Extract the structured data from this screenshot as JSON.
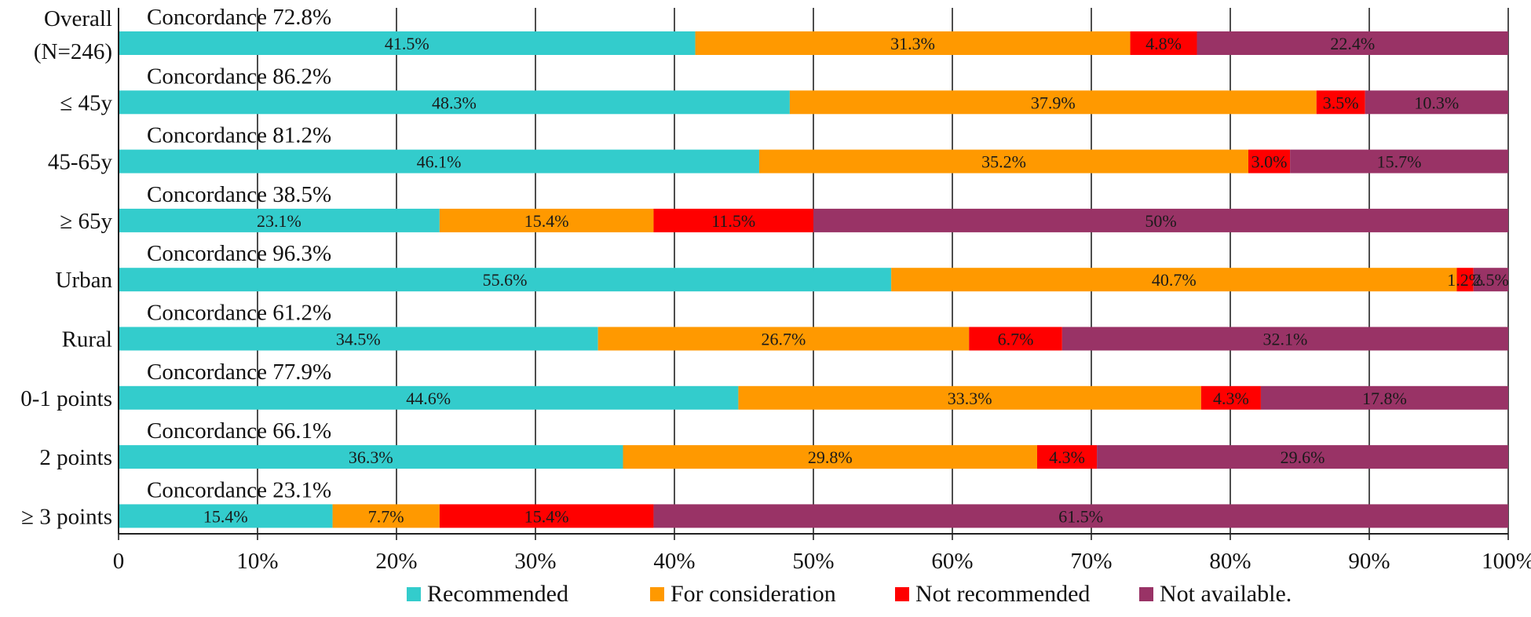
{
  "chart_data": {
    "type": "bar",
    "orientation": "horizontal",
    "stacked": true,
    "title": "",
    "xlabel": "",
    "ylabel": "",
    "xlim": [
      0,
      100
    ],
    "x_ticks": [
      "0",
      "10%",
      "20%",
      "30%",
      "40%",
      "50%",
      "60%",
      "70%",
      "80%",
      "90%",
      "100%"
    ],
    "grid": "vertical",
    "legend_position": "bottom",
    "categories": [
      {
        "label_lines": [
          "Overall",
          "(N=246)"
        ],
        "concordance": "Concordance 72.8%"
      },
      {
        "label_lines": [
          "≤ 45y"
        ],
        "concordance": "Concordance 86.2%"
      },
      {
        "label_lines": [
          "45-65y"
        ],
        "concordance": "Concordance 81.2%"
      },
      {
        "label_lines": [
          "≥ 65y"
        ],
        "concordance": "Concordance 38.5%"
      },
      {
        "label_lines": [
          "Urban"
        ],
        "concordance": "Concordance 96.3%"
      },
      {
        "label_lines": [
          "Rural"
        ],
        "concordance": "Concordance 61.2%"
      },
      {
        "label_lines": [
          "0-1 points"
        ],
        "concordance": "Concordance 77.9%"
      },
      {
        "label_lines": [
          "2 points"
        ],
        "concordance": "Concordance 66.1%"
      },
      {
        "label_lines": [
          "≥ 3 points"
        ],
        "concordance": "Concordance 23.1%"
      }
    ],
    "series": [
      {
        "name": "Recommended",
        "color": "#33CCCC",
        "values": [
          41.5,
          48.3,
          46.1,
          23.1,
          55.6,
          34.5,
          44.6,
          36.3,
          15.4
        ],
        "labels": [
          "41.5%",
          "48.3%",
          "46.1%",
          "23.1%",
          "55.6%",
          "34.5%",
          "44.6%",
          "36.3%",
          "15.4%"
        ]
      },
      {
        "name": "For consideration",
        "color": "#FF9900",
        "values": [
          31.3,
          37.9,
          35.2,
          15.4,
          40.7,
          26.7,
          33.3,
          29.8,
          7.7
        ],
        "labels": [
          "31.3%",
          "37.9%",
          "35.2%",
          "15.4%",
          "40.7%",
          "26.7%",
          "33.3%",
          "29.8%",
          "7.7%"
        ]
      },
      {
        "name": "Not recommended",
        "color": "#FF0000",
        "values": [
          4.8,
          3.5,
          3.0,
          11.5,
          1.2,
          6.7,
          4.3,
          4.3,
          15.4
        ],
        "labels": [
          "4.8%",
          "3.5%",
          "3.0%",
          "11.5%",
          "1.2%",
          "6.7%",
          "4.3%",
          "4.3%",
          "15.4%"
        ]
      },
      {
        "name": "Not available.",
        "color": "#993366",
        "values": [
          22.4,
          10.3,
          15.7,
          50,
          2.5,
          32.1,
          17.8,
          29.6,
          61.5
        ],
        "labels": [
          "22.4%",
          "10.3%",
          "15.7%",
          "50%",
          "2.5%",
          "32.1%",
          "17.8%",
          "29.6%",
          "61.5%"
        ]
      }
    ]
  }
}
